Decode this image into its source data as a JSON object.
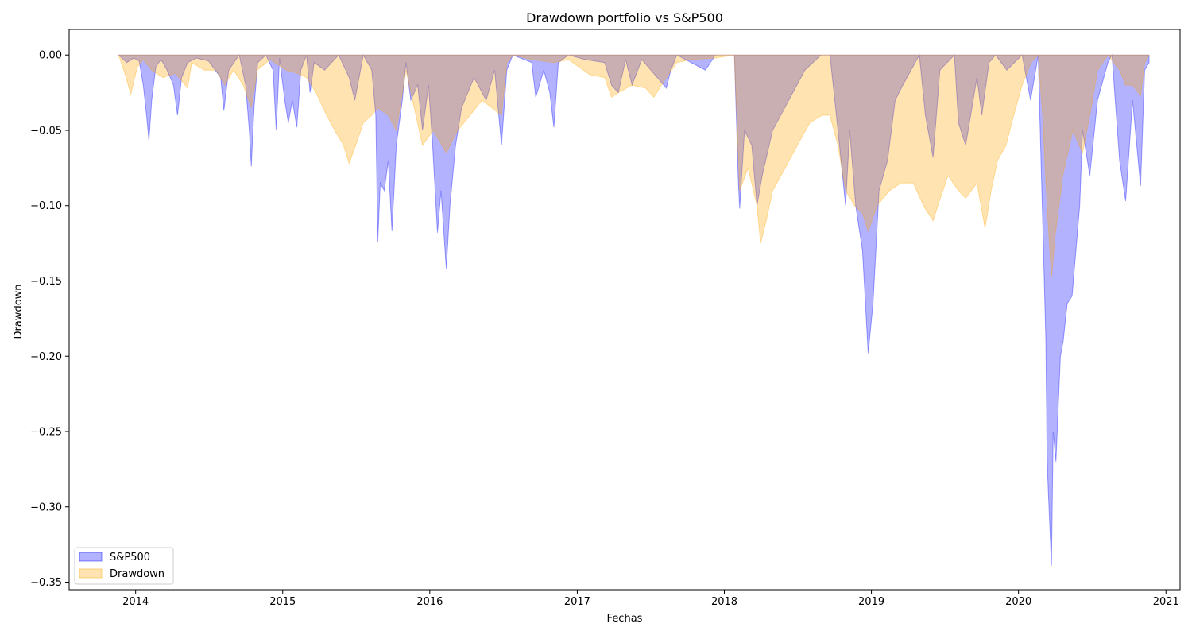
{
  "chart_data": {
    "type": "area",
    "title": "Drawdown portfolio vs S&P500",
    "xlabel": "Fechas",
    "ylabel": "Drawdown",
    "x_type": "date",
    "xlim": [
      "2013-07-20",
      "2021-02-05"
    ],
    "ylim": [
      -0.355,
      0.017
    ],
    "x_ticks": [
      "2014",
      "2015",
      "2016",
      "2017",
      "2018",
      "2019",
      "2020",
      "2021"
    ],
    "x_tick_dates": [
      "2014-01-01",
      "2015-01-01",
      "2016-01-01",
      "2017-01-01",
      "2018-01-01",
      "2019-01-01",
      "2020-01-01",
      "2021-01-01"
    ],
    "y_ticks": [
      "0.00",
      "−0.05",
      "−0.10",
      "−0.15",
      "−0.20",
      "−0.25",
      "−0.30",
      "−0.35"
    ],
    "y_tick_values": [
      0.0,
      -0.05,
      -0.1,
      -0.15,
      -0.2,
      -0.25,
      -0.3,
      -0.35
    ],
    "grid": false,
    "legend_position": "lower-left",
    "series": [
      {
        "name": "S&P500",
        "color": "#0000ff",
        "fill_opacity": 0.3,
        "points": [
          [
            "2013-11-20",
            0.0
          ],
          [
            "2013-12-10",
            -0.005
          ],
          [
            "2013-12-28",
            -0.002
          ],
          [
            "2014-01-10",
            -0.004
          ],
          [
            "2014-01-20",
            -0.02
          ],
          [
            "2014-01-28",
            -0.04
          ],
          [
            "2014-02-03",
            -0.057
          ],
          [
            "2014-02-10",
            -0.03
          ],
          [
            "2014-02-20",
            -0.008
          ],
          [
            "2014-03-05",
            -0.003
          ],
          [
            "2014-03-20",
            -0.01
          ],
          [
            "2014-04-05",
            -0.02
          ],
          [
            "2014-04-15",
            -0.04
          ],
          [
            "2014-04-25",
            -0.015
          ],
          [
            "2014-05-10",
            -0.005
          ],
          [
            "2014-06-01",
            -0.002
          ],
          [
            "2014-07-01",
            -0.004
          ],
          [
            "2014-07-31",
            -0.015
          ],
          [
            "2014-08-08",
            -0.037
          ],
          [
            "2014-08-20",
            -0.01
          ],
          [
            "2014-09-15",
            0.0
          ],
          [
            "2014-10-01",
            -0.02
          ],
          [
            "2014-10-10",
            -0.05
          ],
          [
            "2014-10-15",
            -0.074
          ],
          [
            "2014-10-22",
            -0.035
          ],
          [
            "2014-10-31",
            -0.005
          ],
          [
            "2014-11-20",
            0.0
          ],
          [
            "2014-12-08",
            -0.01
          ],
          [
            "2014-12-16",
            -0.05
          ],
          [
            "2014-12-24",
            -0.002
          ],
          [
            "2015-01-06",
            -0.03
          ],
          [
            "2015-01-15",
            -0.045
          ],
          [
            "2015-01-25",
            -0.03
          ],
          [
            "2015-02-05",
            -0.048
          ],
          [
            "2015-02-15",
            -0.01
          ],
          [
            "2015-03-01",
            0.0
          ],
          [
            "2015-03-10",
            -0.025
          ],
          [
            "2015-03-20",
            -0.005
          ],
          [
            "2015-04-15",
            -0.01
          ],
          [
            "2015-05-20",
            0.0
          ],
          [
            "2015-06-15",
            -0.015
          ],
          [
            "2015-06-29",
            -0.03
          ],
          [
            "2015-07-20",
            0.0
          ],
          [
            "2015-08-10",
            -0.01
          ],
          [
            "2015-08-20",
            -0.04
          ],
          [
            "2015-08-25",
            -0.124
          ],
          [
            "2015-08-31",
            -0.085
          ],
          [
            "2015-09-10",
            -0.09
          ],
          [
            "2015-09-20",
            -0.07
          ],
          [
            "2015-09-29",
            -0.117
          ],
          [
            "2015-10-10",
            -0.06
          ],
          [
            "2015-10-25",
            -0.03
          ],
          [
            "2015-11-03",
            -0.005
          ],
          [
            "2015-11-15",
            -0.03
          ],
          [
            "2015-12-02",
            -0.02
          ],
          [
            "2015-12-14",
            -0.05
          ],
          [
            "2015-12-29",
            -0.02
          ],
          [
            "2016-01-08",
            -0.06
          ],
          [
            "2016-01-20",
            -0.118
          ],
          [
            "2016-01-29",
            -0.09
          ],
          [
            "2016-02-11",
            -0.142
          ],
          [
            "2016-02-20",
            -0.1
          ],
          [
            "2016-03-05",
            -0.06
          ],
          [
            "2016-03-20",
            -0.035
          ],
          [
            "2016-04-20",
            -0.015
          ],
          [
            "2016-05-20",
            -0.03
          ],
          [
            "2016-06-10",
            -0.01
          ],
          [
            "2016-06-27",
            -0.06
          ],
          [
            "2016-07-10",
            -0.01
          ],
          [
            "2016-07-25",
            0.0
          ],
          [
            "2016-09-10",
            -0.005
          ],
          [
            "2016-09-20",
            -0.028
          ],
          [
            "2016-10-10",
            -0.01
          ],
          [
            "2016-10-25",
            -0.025
          ],
          [
            "2016-11-04",
            -0.048
          ],
          [
            "2016-11-15",
            -0.005
          ],
          [
            "2016-12-10",
            0.0
          ],
          [
            "2017-01-20",
            -0.003
          ],
          [
            "2017-03-10",
            -0.005
          ],
          [
            "2017-03-27",
            -0.02
          ],
          [
            "2017-04-13",
            -0.025
          ],
          [
            "2017-05-01",
            -0.003
          ],
          [
            "2017-05-17",
            -0.02
          ],
          [
            "2017-06-10",
            -0.003
          ],
          [
            "2017-08-10",
            -0.022
          ],
          [
            "2017-08-21",
            -0.01
          ],
          [
            "2017-09-05",
            0.0
          ],
          [
            "2017-11-15",
            -0.01
          ],
          [
            "2017-12-10",
            0.0
          ],
          [
            "2018-01-26",
            0.0
          ],
          [
            "2018-02-05",
            -0.085
          ],
          [
            "2018-02-08",
            -0.102
          ],
          [
            "2018-02-20",
            -0.05
          ],
          [
            "2018-03-10",
            -0.06
          ],
          [
            "2018-03-23",
            -0.1
          ],
          [
            "2018-04-05",
            -0.08
          ],
          [
            "2018-05-01",
            -0.05
          ],
          [
            "2018-06-10",
            -0.03
          ],
          [
            "2018-07-20",
            -0.01
          ],
          [
            "2018-08-29",
            0.0
          ],
          [
            "2018-09-20",
            0.0
          ],
          [
            "2018-10-10",
            -0.05
          ],
          [
            "2018-10-29",
            -0.1
          ],
          [
            "2018-11-08",
            -0.05
          ],
          [
            "2018-11-23",
            -0.1
          ],
          [
            "2018-12-10",
            -0.13
          ],
          [
            "2018-12-24",
            -0.198
          ],
          [
            "2019-01-05",
            -0.165
          ],
          [
            "2019-01-20",
            -0.09
          ],
          [
            "2019-02-10",
            -0.07
          ],
          [
            "2019-03-01",
            -0.03
          ],
          [
            "2019-03-20",
            -0.02
          ],
          [
            "2019-04-30",
            0.0
          ],
          [
            "2019-05-15",
            -0.04
          ],
          [
            "2019-06-03",
            -0.068
          ],
          [
            "2019-06-20",
            -0.01
          ],
          [
            "2019-07-26",
            0.0
          ],
          [
            "2019-08-05",
            -0.045
          ],
          [
            "2019-08-23",
            -0.06
          ],
          [
            "2019-09-20",
            -0.015
          ],
          [
            "2019-10-02",
            -0.04
          ],
          [
            "2019-10-20",
            -0.005
          ],
          [
            "2019-11-05",
            0.0
          ],
          [
            "2019-12-03",
            -0.01
          ],
          [
            "2020-01-10",
            0.0
          ],
          [
            "2020-01-31",
            -0.03
          ],
          [
            "2020-02-19",
            0.0
          ],
          [
            "2020-02-24",
            -0.05
          ],
          [
            "2020-03-03",
            -0.13
          ],
          [
            "2020-03-09",
            -0.19
          ],
          [
            "2020-03-12",
            -0.27
          ],
          [
            "2020-03-16",
            -0.296
          ],
          [
            "2020-03-23",
            -0.339
          ],
          [
            "2020-03-27",
            -0.25
          ],
          [
            "2020-04-03",
            -0.27
          ],
          [
            "2020-04-14",
            -0.2
          ],
          [
            "2020-04-21",
            -0.19
          ],
          [
            "2020-05-01",
            -0.165
          ],
          [
            "2020-05-13",
            -0.16
          ],
          [
            "2020-06-01",
            -0.1
          ],
          [
            "2020-06-08",
            -0.05
          ],
          [
            "2020-06-26",
            -0.08
          ],
          [
            "2020-07-15",
            -0.03
          ],
          [
            "2020-08-10",
            -0.005
          ],
          [
            "2020-08-20",
            0.0
          ],
          [
            "2020-09-08",
            -0.07
          ],
          [
            "2020-09-23",
            -0.097
          ],
          [
            "2020-10-10",
            -0.03
          ],
          [
            "2020-10-30",
            -0.087
          ],
          [
            "2020-11-09",
            -0.01
          ],
          [
            "2020-11-20",
            -0.005
          ]
        ]
      },
      {
        "name": "Drawdown",
        "color": "#ffa500",
        "fill_opacity": 0.3,
        "points": [
          [
            "2013-11-20",
            0.0
          ],
          [
            "2013-12-05",
            -0.012
          ],
          [
            "2013-12-20",
            -0.026
          ],
          [
            "2014-01-05",
            -0.008
          ],
          [
            "2014-01-20",
            -0.003
          ],
          [
            "2014-02-10",
            -0.01
          ],
          [
            "2014-03-10",
            -0.015
          ],
          [
            "2014-04-10",
            -0.012
          ],
          [
            "2014-05-10",
            -0.022
          ],
          [
            "2014-05-20",
            -0.005
          ],
          [
            "2014-06-20",
            -0.01
          ],
          [
            "2014-07-20",
            -0.01
          ],
          [
            "2014-08-10",
            -0.02
          ],
          [
            "2014-09-01",
            -0.01
          ],
          [
            "2014-09-25",
            -0.02
          ],
          [
            "2014-10-15",
            -0.035
          ],
          [
            "2014-10-30",
            -0.01
          ],
          [
            "2014-12-01",
            -0.003
          ],
          [
            "2015-01-10",
            -0.01
          ],
          [
            "2015-02-05",
            -0.012
          ],
          [
            "2015-03-01",
            -0.015
          ],
          [
            "2015-03-25",
            -0.025
          ],
          [
            "2015-04-20",
            -0.04
          ],
          [
            "2015-05-10",
            -0.05
          ],
          [
            "2015-06-01",
            -0.06
          ],
          [
            "2015-06-15",
            -0.072
          ],
          [
            "2015-07-01",
            -0.06
          ],
          [
            "2015-07-20",
            -0.045
          ],
          [
            "2015-08-10",
            -0.04
          ],
          [
            "2015-08-25",
            -0.035
          ],
          [
            "2015-09-20",
            -0.04
          ],
          [
            "2015-10-10",
            -0.05
          ],
          [
            "2015-11-03",
            -0.01
          ],
          [
            "2015-12-14",
            -0.06
          ],
          [
            "2016-01-10",
            -0.05
          ],
          [
            "2016-02-11",
            -0.065
          ],
          [
            "2016-03-10",
            -0.05
          ],
          [
            "2016-04-10",
            -0.04
          ],
          [
            "2016-05-10",
            -0.03
          ],
          [
            "2016-06-27",
            -0.04
          ],
          [
            "2016-07-10",
            -0.005
          ],
          [
            "2016-07-25",
            0.0
          ],
          [
            "2016-09-10",
            -0.003
          ],
          [
            "2016-11-04",
            -0.005
          ],
          [
            "2016-12-10",
            -0.003
          ],
          [
            "2017-02-01",
            -0.013
          ],
          [
            "2017-03-10",
            -0.015
          ],
          [
            "2017-03-27",
            -0.028
          ],
          [
            "2017-04-13",
            -0.025
          ],
          [
            "2017-05-17",
            -0.02
          ],
          [
            "2017-06-20",
            -0.022
          ],
          [
            "2017-07-10",
            -0.028
          ],
          [
            "2017-08-10",
            -0.015
          ],
          [
            "2017-09-05",
            -0.005
          ],
          [
            "2017-10-10",
            -0.003
          ],
          [
            "2017-12-10",
            -0.002
          ],
          [
            "2018-01-26",
            0.0
          ],
          [
            "2018-02-08",
            -0.09
          ],
          [
            "2018-03-01",
            -0.075
          ],
          [
            "2018-03-23",
            -0.1
          ],
          [
            "2018-04-01",
            -0.125
          ],
          [
            "2018-04-15",
            -0.11
          ],
          [
            "2018-05-01",
            -0.09
          ],
          [
            "2018-06-01",
            -0.075
          ],
          [
            "2018-07-01",
            -0.06
          ],
          [
            "2018-08-01",
            -0.045
          ],
          [
            "2018-09-01",
            -0.04
          ],
          [
            "2018-09-20",
            -0.04
          ],
          [
            "2018-10-10",
            -0.06
          ],
          [
            "2018-10-29",
            -0.09
          ],
          [
            "2018-11-20",
            -0.1
          ],
          [
            "2018-12-10",
            -0.105
          ],
          [
            "2018-12-24",
            -0.117
          ],
          [
            "2019-01-15",
            -0.1
          ],
          [
            "2019-02-15",
            -0.09
          ],
          [
            "2019-03-15",
            -0.085
          ],
          [
            "2019-04-15",
            -0.085
          ],
          [
            "2019-05-10",
            -0.1
          ],
          [
            "2019-06-03",
            -0.11
          ],
          [
            "2019-06-15",
            -0.1
          ],
          [
            "2019-07-10",
            -0.08
          ],
          [
            "2019-08-05",
            -0.09
          ],
          [
            "2019-08-23",
            -0.095
          ],
          [
            "2019-09-20",
            -0.085
          ],
          [
            "2019-10-10",
            -0.115
          ],
          [
            "2019-10-25",
            -0.09
          ],
          [
            "2019-11-10",
            -0.07
          ],
          [
            "2019-12-01",
            -0.06
          ],
          [
            "2019-12-20",
            -0.04
          ],
          [
            "2020-01-10",
            -0.02
          ],
          [
            "2020-02-01",
            -0.005
          ],
          [
            "2020-02-19",
            0.0
          ],
          [
            "2020-03-01",
            -0.04
          ],
          [
            "2020-03-12",
            -0.1
          ],
          [
            "2020-03-23",
            -0.148
          ],
          [
            "2020-04-01",
            -0.12
          ],
          [
            "2020-04-20",
            -0.08
          ],
          [
            "2020-05-15",
            -0.05
          ],
          [
            "2020-06-08",
            -0.065
          ],
          [
            "2020-06-26",
            -0.04
          ],
          [
            "2020-07-15",
            -0.01
          ],
          [
            "2020-08-10",
            0.0
          ],
          [
            "2020-09-08",
            -0.01
          ],
          [
            "2020-09-23",
            -0.02
          ],
          [
            "2020-10-10",
            -0.02
          ],
          [
            "2020-10-30",
            -0.027
          ],
          [
            "2020-11-09",
            -0.005
          ],
          [
            "2020-11-20",
            0.0
          ]
        ]
      }
    ]
  }
}
